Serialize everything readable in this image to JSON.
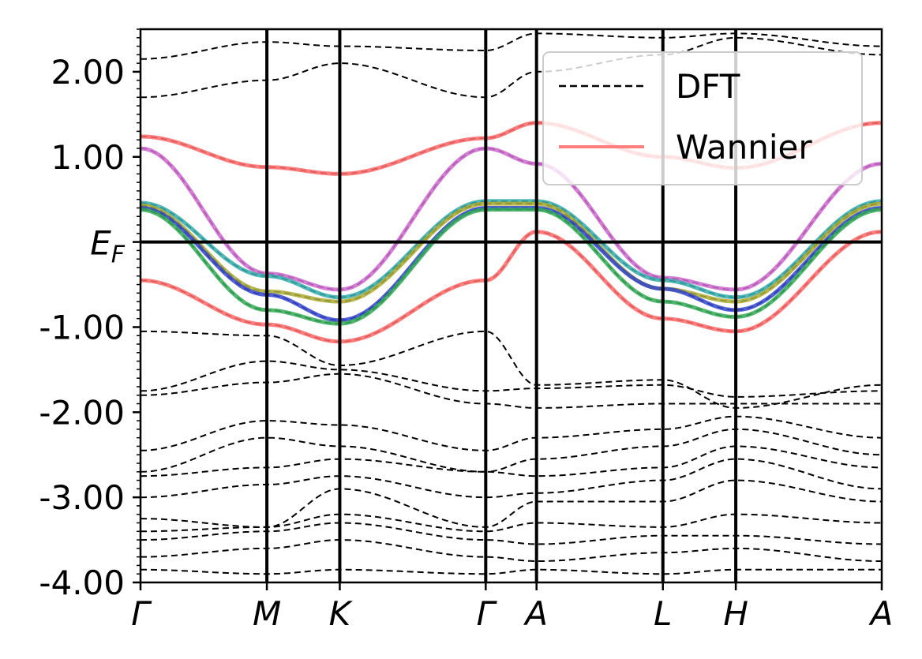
{
  "chart_data": {
    "type": "line",
    "title": "",
    "xlabel": "",
    "ylabel": "",
    "x_ticks": [
      "Γ",
      "M",
      "K",
      "Γ",
      "A",
      "L",
      "H",
      "A"
    ],
    "x_tick_positions": [
      0,
      1,
      1.577,
      2.732,
      3.134,
      4.134,
      4.711,
      5.866
    ],
    "ylim": [
      -4.0,
      2.5
    ],
    "y_ticks": [
      -4.0,
      -3.0,
      -2.0,
      -1.0,
      0.0,
      1.0,
      2.0
    ],
    "y_tick_labels": [
      "-4.00",
      "-3.00",
      "-2.00",
      "-1.00",
      "E_F",
      "1.00",
      "2.00"
    ],
    "fermi_level_label": {
      "main": "E",
      "sub": "F"
    },
    "fermi_level": 0.0,
    "legend": {
      "placement": "top-right",
      "entries": [
        {
          "label": "DFT",
          "style": "dashed",
          "color": "#000000"
        },
        {
          "label": "Wannier",
          "style": "solid",
          "color": "#ff7f7f"
        }
      ]
    },
    "series": [
      {
        "name": "Wannier",
        "color": "#ff6666",
        "x": [
          0,
          1,
          1.577,
          2.732,
          3.134,
          4.134,
          4.711,
          5.866
        ],
        "y": [
          1.24,
          0.88,
          0.8,
          1.22,
          1.4,
          1.0,
          0.87,
          1.4
        ]
      },
      {
        "color": "#cc66cc",
        "x": [
          0,
          1,
          1.577,
          2.732,
          3.134,
          4.134,
          4.711,
          5.866
        ],
        "y": [
          1.1,
          -0.37,
          -0.56,
          1.1,
          0.92,
          -0.42,
          -0.56,
          0.92
        ]
      },
      {
        "color": "#33aaaa",
        "x": [
          0,
          1,
          1.577,
          2.732,
          3.134,
          4.134,
          4.711,
          5.866
        ],
        "y": [
          0.46,
          -0.4,
          -0.65,
          0.48,
          0.48,
          -0.45,
          -0.65,
          0.48
        ]
      },
      {
        "color": "#aaaa33",
        "x": [
          0,
          1,
          1.577,
          2.732,
          3.134,
          4.134,
          4.711,
          5.866
        ],
        "y": [
          0.43,
          -0.58,
          -0.7,
          0.45,
          0.45,
          -0.55,
          -0.7,
          0.45
        ]
      },
      {
        "color": "#3344cc",
        "x": [
          0,
          1,
          1.577,
          2.732,
          3.134,
          4.134,
          4.711,
          5.866
        ],
        "y": [
          0.4,
          -0.62,
          -0.92,
          0.4,
          0.4,
          -0.55,
          -0.8,
          0.4
        ]
      },
      {
        "color": "#33aa55",
        "x": [
          0,
          1,
          1.577,
          2.732,
          3.134,
          4.134,
          4.711,
          5.866
        ],
        "y": [
          0.38,
          -0.8,
          -0.96,
          0.38,
          0.38,
          -0.7,
          -0.88,
          0.38
        ]
      },
      {
        "color": "#ff6666",
        "x": [
          0,
          1,
          1.577,
          2.732,
          3.134,
          4.134,
          4.711,
          5.866
        ],
        "y": [
          -0.45,
          -0.97,
          -1.17,
          -0.45,
          0.12,
          -0.9,
          -1.05,
          0.12
        ]
      }
    ],
    "dft_bands": [
      {
        "x": [
          0,
          1,
          1.577,
          2.732,
          3.134,
          4.134,
          4.711,
          5.866
        ],
        "y": [
          1.7,
          1.9,
          2.1,
          1.7,
          2.0,
          2.2,
          2.4,
          2.2
        ]
      },
      {
        "x": [
          0,
          1,
          1.577,
          2.732,
          3.134,
          4.134,
          4.711,
          5.866
        ],
        "y": [
          2.15,
          2.35,
          2.3,
          2.25,
          2.45,
          2.4,
          2.45,
          2.3
        ]
      },
      {
        "x": [
          0,
          1,
          1.577,
          2.732,
          3.134,
          4.134,
          4.711,
          5.866
        ],
        "y": [
          -1.05,
          -1.1,
          -1.45,
          -1.05,
          -1.68,
          -1.62,
          -1.95,
          -1.68
        ]
      },
      {
        "x": [
          0,
          1,
          1.577,
          2.732,
          3.134,
          4.134,
          4.711,
          5.866
        ],
        "y": [
          -1.75,
          -1.4,
          -1.5,
          -1.75,
          -1.72,
          -1.68,
          -1.82,
          -1.75
        ]
      },
      {
        "x": [
          0,
          1,
          1.577,
          2.732,
          3.134,
          4.134,
          4.711,
          5.866
        ],
        "y": [
          -1.8,
          -1.65,
          -1.55,
          -1.9,
          -1.95,
          -1.9,
          -1.9,
          -1.9
        ]
      },
      {
        "x": [
          0,
          1,
          1.577,
          2.732,
          3.134,
          4.134,
          4.711,
          5.866
        ],
        "y": [
          -2.45,
          -2.1,
          -2.15,
          -2.45,
          -2.3,
          -2.2,
          -2.05,
          -2.3
        ]
      },
      {
        "x": [
          0,
          1,
          1.577,
          2.732,
          3.134,
          4.134,
          4.711,
          5.866
        ],
        "y": [
          -2.7,
          -2.3,
          -2.4,
          -2.7,
          -2.55,
          -2.4,
          -2.2,
          -2.5
        ]
      },
      {
        "x": [
          0,
          1,
          1.577,
          2.732,
          3.134,
          4.134,
          4.711,
          5.866
        ],
        "y": [
          -2.75,
          -2.65,
          -2.55,
          -2.7,
          -2.75,
          -2.65,
          -2.4,
          -2.65
        ]
      },
      {
        "x": [
          0,
          1,
          1.577,
          2.732,
          3.134,
          4.134,
          4.711,
          5.866
        ],
        "y": [
          -3.0,
          -2.85,
          -2.75,
          -3.0,
          -2.95,
          -2.8,
          -2.55,
          -2.9
        ]
      },
      {
        "x": [
          0,
          1,
          1.577,
          2.732,
          3.134,
          4.134,
          4.711,
          5.866
        ],
        "y": [
          -3.25,
          -3.35,
          -2.9,
          -3.35,
          -3.05,
          -3.05,
          -2.8,
          -3.05
        ]
      },
      {
        "x": [
          0,
          1,
          1.577,
          2.732,
          3.134,
          4.134,
          4.711,
          5.866
        ],
        "y": [
          -3.4,
          -3.35,
          -3.2,
          -3.4,
          -3.3,
          -3.35,
          -3.2,
          -3.3
        ]
      },
      {
        "x": [
          0,
          1,
          1.577,
          2.732,
          3.134,
          4.134,
          4.711,
          5.866
        ],
        "y": [
          -3.5,
          -3.4,
          -3.3,
          -3.5,
          -3.55,
          -3.45,
          -3.45,
          -3.55
        ]
      },
      {
        "x": [
          0,
          1,
          1.577,
          2.732,
          3.134,
          4.134,
          4.711,
          5.866
        ],
        "y": [
          -3.7,
          -3.6,
          -3.5,
          -3.7,
          -3.75,
          -3.65,
          -3.6,
          -3.75
        ]
      },
      {
        "x": [
          0,
          1,
          1.577,
          2.732,
          3.134,
          4.134,
          4.711,
          5.866
        ],
        "y": [
          -3.85,
          -3.9,
          -3.85,
          -3.9,
          -3.85,
          -3.9,
          -3.85,
          -3.85
        ]
      }
    ]
  }
}
